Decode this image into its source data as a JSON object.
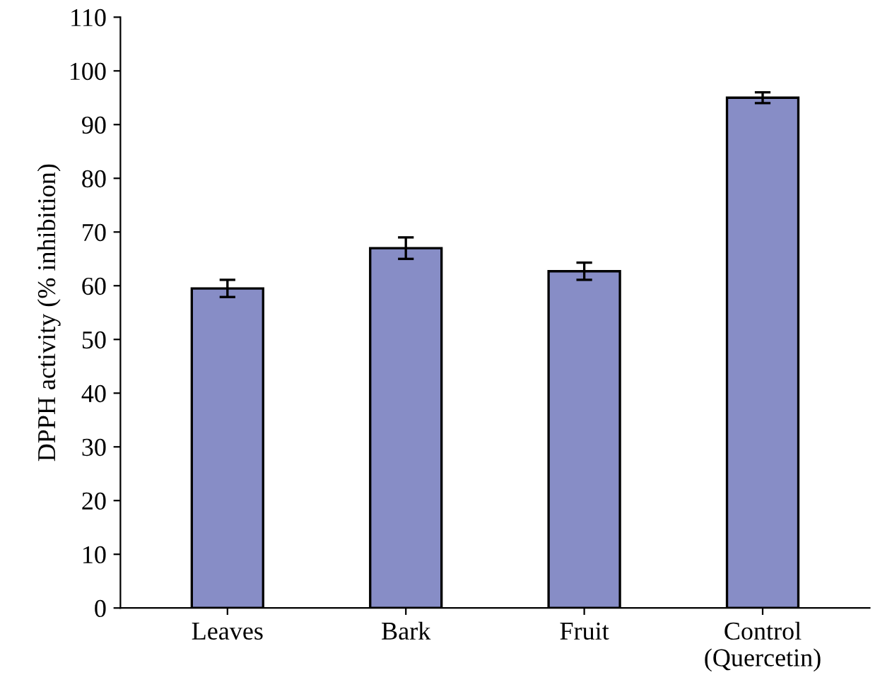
{
  "chart_data": {
    "type": "bar",
    "ylabel": "DPPH activity (% inhibition)",
    "categories": [
      "Leaves",
      "Bark",
      "Fruit",
      "Control\n(Quercetin)"
    ],
    "values": [
      59.5,
      67,
      62.7,
      95
    ],
    "errors": [
      1.6,
      2,
      1.6,
      1
    ],
    "color": "#878dc6",
    "ylim": [
      0,
      110
    ],
    "yticks": [
      0,
      10,
      20,
      30,
      40,
      50,
      60,
      70,
      80,
      90,
      100,
      110
    ],
    "grid": false,
    "legend": false
  }
}
